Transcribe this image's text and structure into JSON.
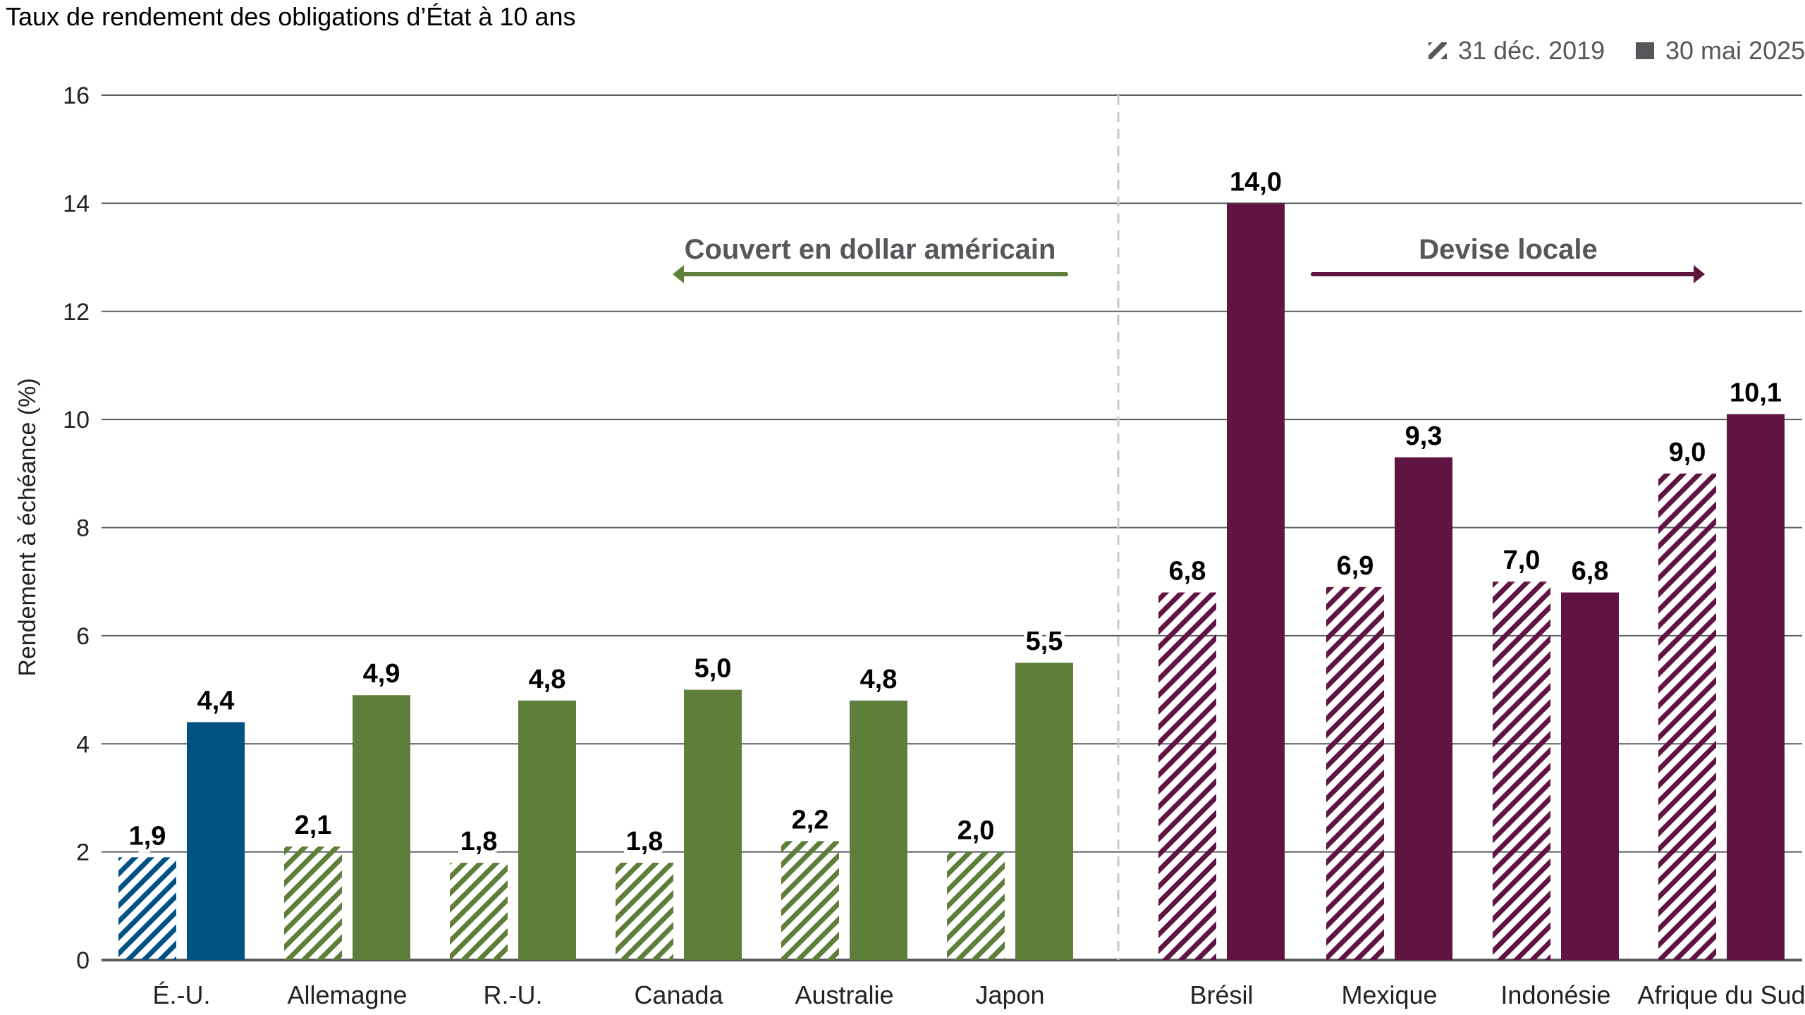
{
  "chart_data": {
    "type": "bar",
    "title": "Taux de rendement des obligations d’État à 10 ans",
    "ylabel": "Rendement à échéance (%)",
    "xlabel": "",
    "ylim": [
      0,
      16
    ],
    "yticks": [
      "0",
      "2",
      "4",
      "6",
      "8",
      "10",
      "12",
      "14",
      "16"
    ],
    "grid": true,
    "legend_position": "top-right",
    "categories": [
      "É.-U.",
      "Allemagne",
      "R.-U.",
      "Canada",
      "Australie",
      "Japon",
      "Brésil",
      "Mexique",
      "Indonésie",
      "Afrique du Sud"
    ],
    "series": [
      {
        "name": "31 déc. 2019",
        "style": "hatched",
        "values": [
          1.9,
          2.1,
          1.8,
          1.8,
          2.2,
          2.0,
          6.8,
          6.9,
          7.0,
          9.0
        ],
        "labels": [
          "1,9",
          "2,1",
          "1,8",
          "1,8",
          "2,2",
          "2,0",
          "6,8",
          "6,9",
          "7,0",
          "9,0"
        ]
      },
      {
        "name": "30 mai 2025",
        "style": "solid",
        "values": [
          4.4,
          4.9,
          4.8,
          5.0,
          4.8,
          5.5,
          14.0,
          9.3,
          6.8,
          10.1
        ],
        "labels": [
          "4,4",
          "4,9",
          "4,8",
          "5,0",
          "4,8",
          "5,5",
          "14,0",
          "9,3",
          "6,8",
          "10,1"
        ]
      }
    ],
    "category_colors": [
      "#005282",
      "#5e7e3a",
      "#5e7e3a",
      "#5e7e3a",
      "#5e7e3a",
      "#5e7e3a",
      "#601441",
      "#601441",
      "#601441",
      "#601441"
    ],
    "annotations": [
      {
        "text": "Couvert en dollar américain",
        "arrow": "left",
        "color": "#5e7e3a"
      },
      {
        "text": "Devise locale",
        "arrow": "right",
        "color": "#601441"
      }
    ],
    "legend_color": "#55575b"
  }
}
